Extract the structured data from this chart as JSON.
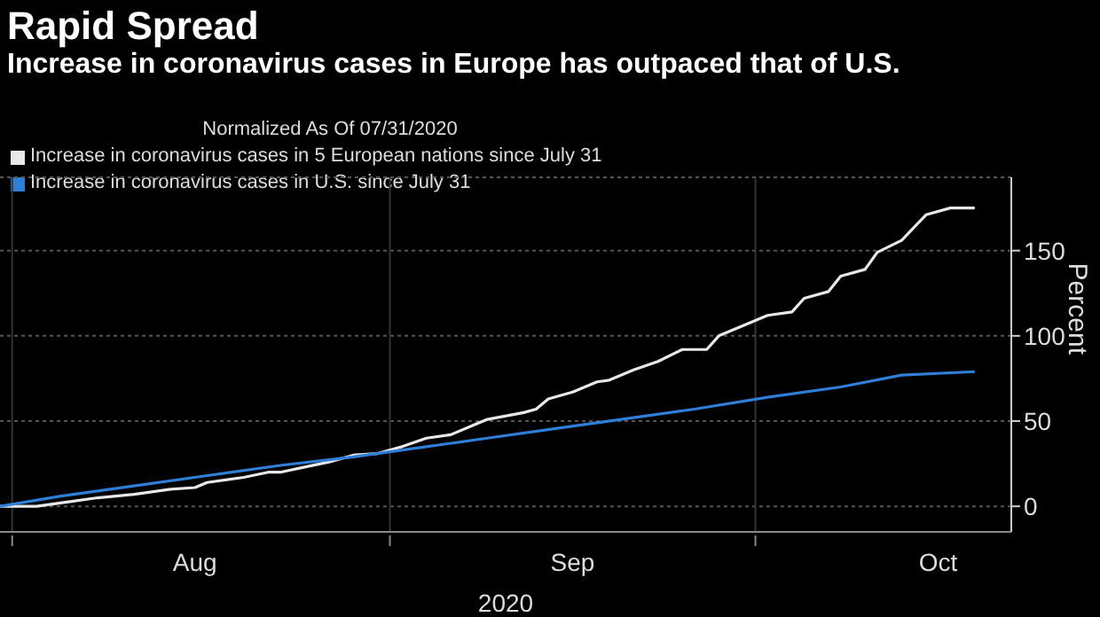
{
  "chart_data": {
    "type": "line",
    "title": "Rapid Spread",
    "subtitle": "Increase in coronavirus cases in Europe has outpaced that of U.S.",
    "legend_title": "Normalized As Of 07/31/2020",
    "ylabel": "Percent",
    "xlabel": "2020",
    "series": [
      {
        "name": "Increase in coronavirus cases in 5 European nations since July 31",
        "color": "#e8e8e8",
        "x": [
          "2020-07-31",
          "2020-08-03",
          "2020-08-06",
          "2020-08-08",
          "2020-08-11",
          "2020-08-14",
          "2020-08-16",
          "2020-08-17",
          "2020-08-20",
          "2020-08-22",
          "2020-08-23",
          "2020-08-25",
          "2020-08-27",
          "2020-08-29",
          "2020-08-31",
          "2020-09-02",
          "2020-09-04",
          "2020-09-06",
          "2020-09-08",
          "2020-09-09",
          "2020-09-12",
          "2020-09-13",
          "2020-09-14",
          "2020-09-16",
          "2020-09-18",
          "2020-09-19",
          "2020-09-21",
          "2020-09-23",
          "2020-09-25",
          "2020-09-27",
          "2020-09-28",
          "2020-09-30",
          "2020-10-02",
          "2020-10-04",
          "2020-10-05",
          "2020-10-07",
          "2020-10-08",
          "2020-10-10",
          "2020-10-11",
          "2020-10-13",
          "2020-10-15",
          "2020-10-17",
          "2020-10-19"
        ],
        "values": [
          0,
          0,
          3,
          5,
          7,
          10,
          11,
          14,
          17,
          20,
          20,
          23,
          26,
          30,
          31,
          35,
          40,
          42,
          48,
          51,
          55,
          57,
          63,
          67,
          73,
          74,
          80,
          85,
          92,
          92,
          100,
          106,
          112,
          114,
          122,
          126,
          135,
          139,
          149,
          156,
          171,
          175,
          175
        ]
      },
      {
        "name": "Increase in coronavirus cases in U.S. since July 31",
        "color": "#2f7ed8",
        "x": [
          "2020-07-31",
          "2020-08-05",
          "2020-08-11",
          "2020-08-17",
          "2020-08-23",
          "2020-08-29",
          "2020-09-04",
          "2020-09-09",
          "2020-09-15",
          "2020-09-21",
          "2020-09-26",
          "2020-10-02",
          "2020-10-08",
          "2020-10-13",
          "2020-10-19"
        ],
        "values": [
          0,
          6,
          12,
          18,
          24,
          29,
          35,
          40,
          46,
          52,
          57,
          64,
          70,
          77,
          79
        ]
      }
    ],
    "xlim": [
      "2020-07-31",
      "2020-10-22"
    ],
    "xticks": [
      {
        "value": "2020-08-01",
        "label": null
      },
      {
        "value": "2020-08-16",
        "label": "Aug"
      },
      {
        "value": "2020-09-01",
        "label": null
      },
      {
        "value": "2020-09-16",
        "label": "Sep"
      },
      {
        "value": "2020-10-01",
        "label": null
      },
      {
        "value": "2020-10-16",
        "label": "Oct"
      }
    ],
    "ylim": [
      -15,
      193
    ],
    "yticks": [
      0,
      50,
      100,
      150
    ],
    "grid": true,
    "legend": "top left",
    "marker": "none",
    "line_style": "solid"
  }
}
